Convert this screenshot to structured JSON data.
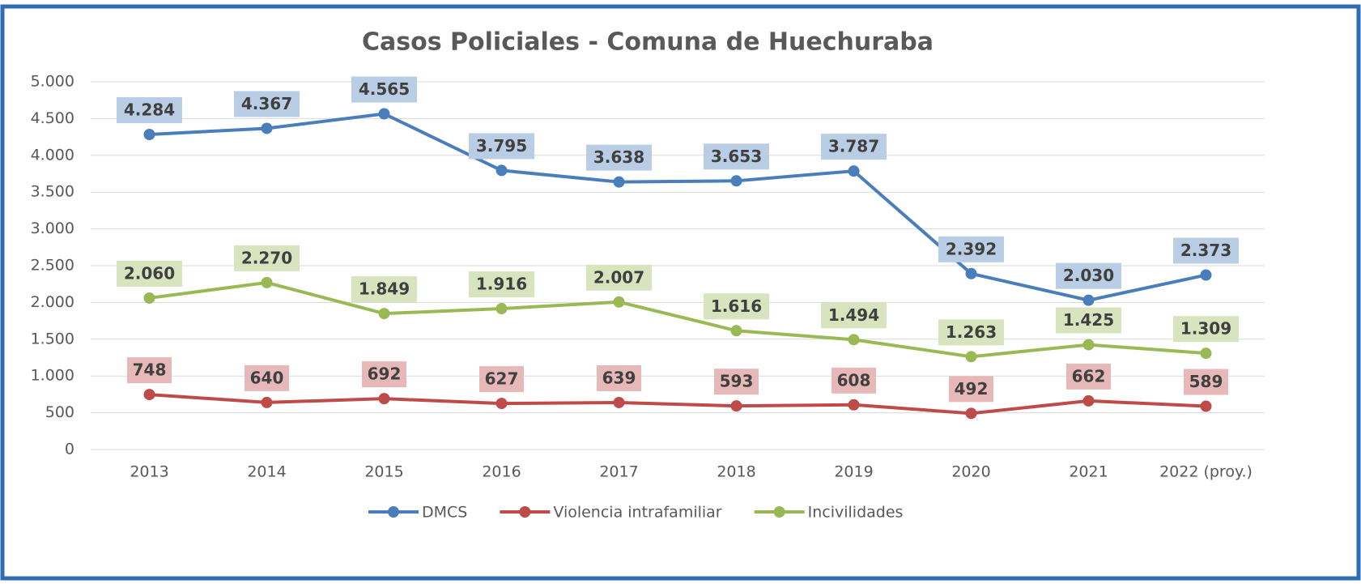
{
  "chart_data": {
    "type": "line",
    "title": "Casos Policiales -  Comuna de Huechuraba",
    "categories": [
      "2013",
      "2014",
      "2015",
      "2016",
      "2017",
      "2018",
      "2019",
      "2020",
      "2021",
      "2022 (proy.)"
    ],
    "series": [
      {
        "name": "DMCS",
        "color": "#4a7ebb",
        "label_color": "#b9cde5",
        "values": [
          4284,
          4367,
          4565,
          3795,
          3638,
          3653,
          3787,
          2392,
          2030,
          2373
        ],
        "value_labels": [
          "4.284",
          "4.367",
          "4.565",
          "3.795",
          "3.638",
          "3.653",
          "3.787",
          "2.392",
          "2.030",
          "2.373"
        ]
      },
      {
        "name": "Violencia intrafamiliar",
        "color": "#be4b48",
        "label_color": "#e6b9b8",
        "values": [
          748,
          640,
          692,
          627,
          639,
          593,
          608,
          492,
          662,
          589
        ],
        "value_labels": [
          "748",
          "640",
          "692",
          "627",
          "639",
          "593",
          "608",
          "492",
          "662",
          "589"
        ]
      },
      {
        "name": "Incivilidades",
        "color": "#98b954",
        "label_color": "#d7e4bd",
        "values": [
          2060,
          2270,
          1849,
          1916,
          2007,
          1616,
          1494,
          1263,
          1425,
          1309
        ],
        "value_labels": [
          "2.060",
          "2.270",
          "1.849",
          "1.916",
          "2.007",
          "1.616",
          "1.494",
          "1.263",
          "1.425",
          "1.309"
        ]
      }
    ],
    "ylim": [
      0,
      5000
    ],
    "yticks": [
      0,
      500,
      {
        "value": 1000,
        "label": "1.000"
      },
      {
        "value": 1500,
        "label": "1.500"
      },
      {
        "value": 2000,
        "label": "2.000"
      },
      {
        "value": 2500,
        "label": "2.500"
      },
      {
        "value": 3000,
        "label": "3.000"
      },
      {
        "value": 3500,
        "label": "3.500"
      },
      {
        "value": 4000,
        "label": "4.000"
      },
      {
        "value": 4500,
        "label": "4.500"
      },
      {
        "value": 5000,
        "label": "5.000"
      }
    ],
    "grid": true,
    "legend": "bottom"
  }
}
